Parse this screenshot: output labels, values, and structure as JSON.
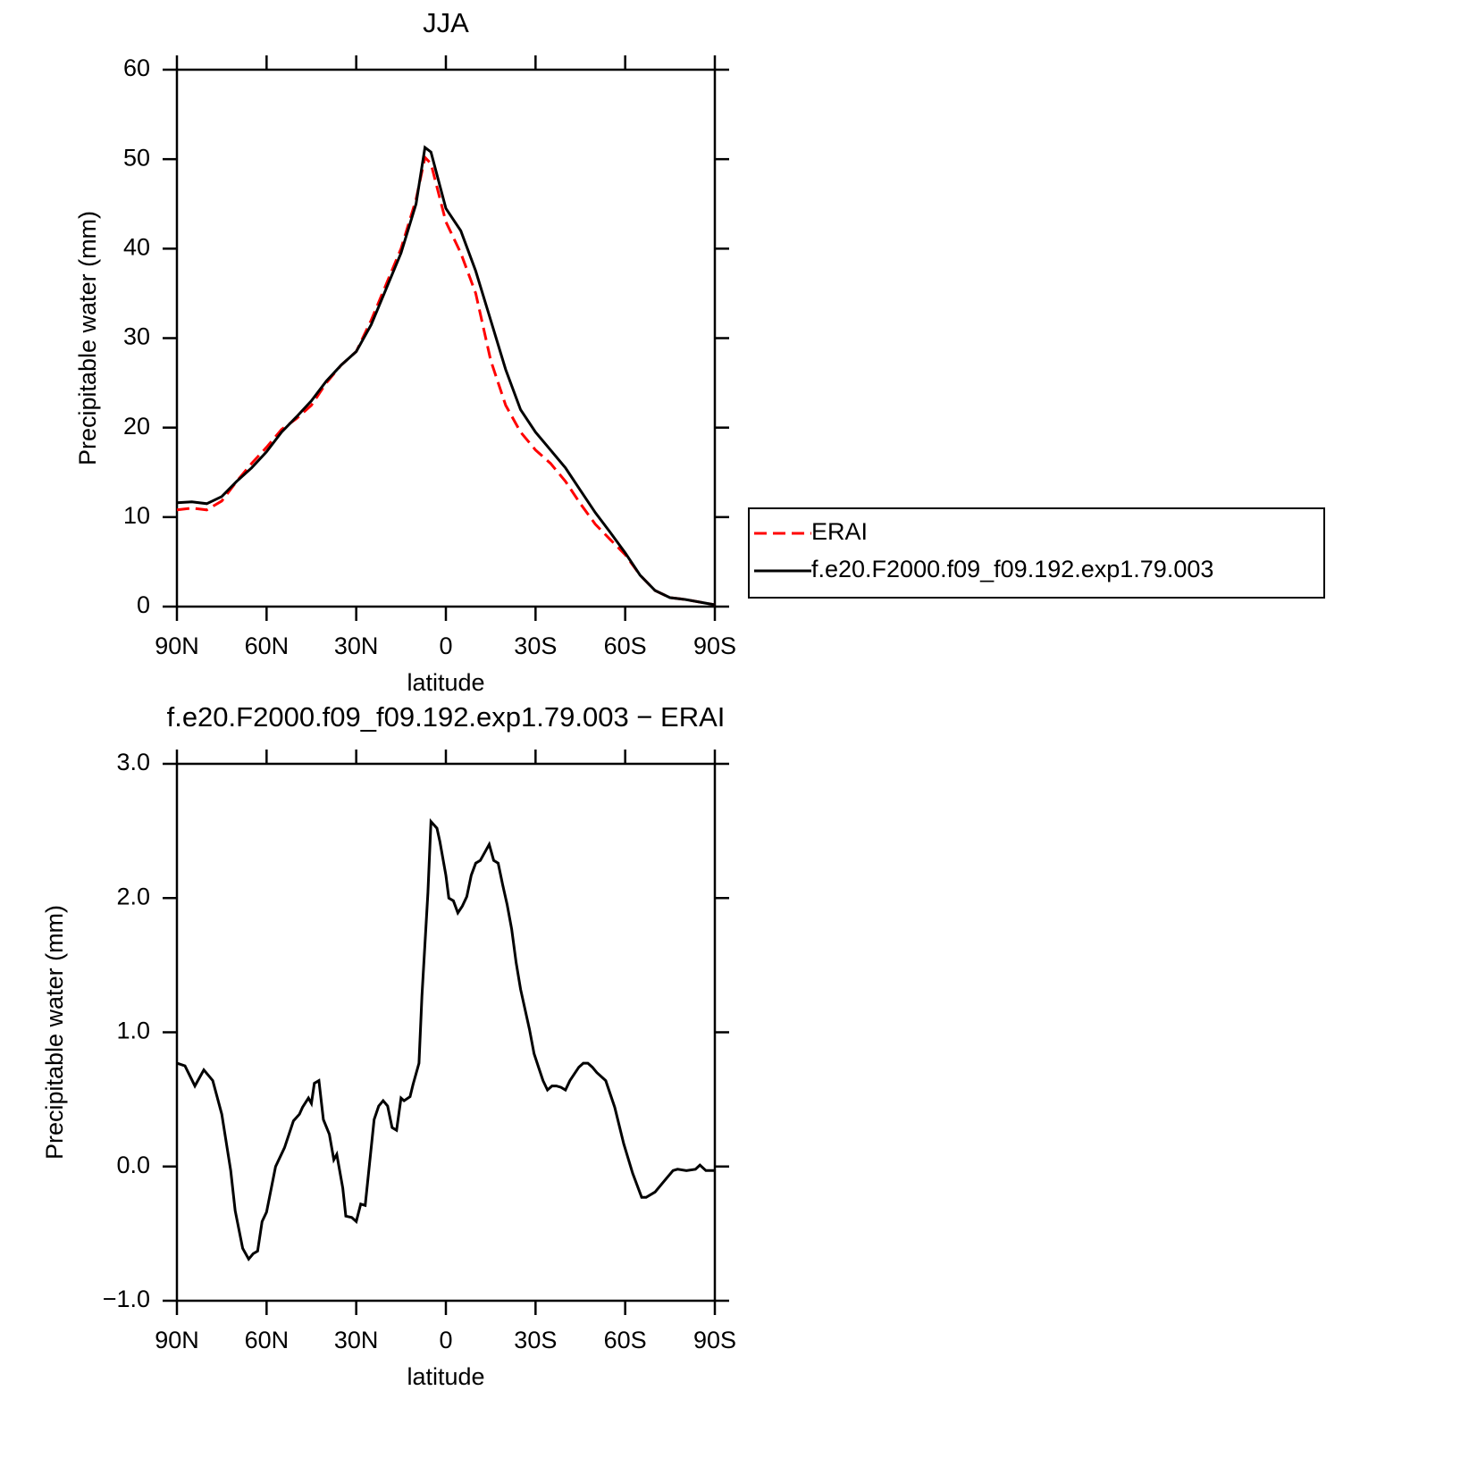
{
  "chart_data": [
    {
      "type": "line",
      "title": "JJA",
      "xlabel": "latitude",
      "ylabel": "Precipitable water (mm)",
      "x": [
        90,
        85,
        80,
        75,
        70,
        65,
        60,
        55,
        50,
        45,
        40,
        35,
        30,
        25,
        20,
        15,
        10,
        7,
        5,
        0,
        -5,
        -10,
        -15,
        -20,
        -25,
        -30,
        -35,
        -40,
        -45,
        -50,
        -55,
        -60,
        -65,
        -70,
        -75,
        -80,
        -85,
        -90
      ],
      "series": [
        {
          "name": "ERAI",
          "color": "#ff0000",
          "dash": true,
          "values": [
            10.8,
            11,
            10.8,
            11.8,
            14,
            16,
            17.8,
            19.8,
            21,
            22.5,
            25,
            27,
            28.5,
            32,
            36,
            40,
            45.5,
            50.2,
            49.5,
            43,
            39.5,
            35,
            27.5,
            22.5,
            19.5,
            17.5,
            16,
            14,
            11.5,
            9.2,
            7.5,
            5.8,
            3.5,
            1.8,
            1,
            0.8,
            0.5,
            0.2
          ]
        },
        {
          "name": "f.e20.F2000.f09_f09.192.exp1.79.003",
          "color": "#000000",
          "dash": false,
          "values": [
            11.6,
            11.7,
            11.5,
            12.3,
            14,
            15.5,
            17.3,
            19.5,
            21.2,
            23,
            25.2,
            27,
            28.5,
            31.5,
            35.5,
            39.5,
            45,
            51.3,
            50.8,
            44.5,
            42,
            37.5,
            32,
            26.5,
            22,
            19.5,
            17.5,
            15.5,
            13,
            10.5,
            8.3,
            6,
            3.5,
            1.8,
            1,
            0.8,
            0.5,
            0.2
          ]
        }
      ],
      "xlim": [
        90,
        -90
      ],
      "xticks": [
        {
          "value": 90,
          "label": "90N"
        },
        {
          "value": 60,
          "label": "60N"
        },
        {
          "value": 30,
          "label": "30N"
        },
        0,
        {
          "value": -30,
          "label": "30S"
        },
        {
          "value": -60,
          "label": "60S"
        },
        {
          "value": -90,
          "label": "90S"
        }
      ],
      "ylim": [
        0,
        60
      ],
      "yticks": [
        0,
        10,
        20,
        30,
        40,
        50,
        60
      ],
      "legend": "right"
    },
    {
      "type": "line",
      "title": "f.e20.F2000.f09_f09.192.exp1.79.003 − ERAI",
      "xlabel": "latitude",
      "ylabel": "Precipitable water (mm)",
      "x": [
        90,
        87.3,
        84,
        81,
        78,
        75,
        72,
        70.5,
        68,
        66,
        64.5,
        63,
        61.5,
        60,
        57,
        54,
        52.5,
        51,
        49,
        48,
        46,
        45,
        44,
        42.5,
        41,
        39,
        37.5,
        36.5,
        34.5,
        33.5,
        31.5,
        30,
        28.5,
        27,
        24,
        22.5,
        21,
        19.5,
        18,
        16.5,
        15,
        14,
        12,
        11,
        9,
        8,
        6,
        5,
        3,
        2,
        0,
        -1,
        -2.5,
        -4,
        -5.5,
        -7,
        -8.5,
        -10,
        -11.5,
        -13,
        -14.5,
        -16,
        -17.5,
        -19,
        -20.5,
        -22,
        -23.5,
        -25,
        -28,
        -29.5,
        -31,
        -32.5,
        -34,
        -35.5,
        -37,
        -38.5,
        -40,
        -41.5,
        -43,
        -44.5,
        -46,
        -47.5,
        -49,
        -50.5,
        -53.5,
        -56.5,
        -59.5,
        -62.5,
        -65.5,
        -67,
        -70,
        -73,
        -76,
        -77.5,
        -80.5,
        -83.5,
        -85,
        -87,
        -90
      ],
      "series": [
        {
          "name": "f.e20.F2000.f09_f09.192.exp1.79.003 − ERAI",
          "color": "#000000",
          "dash": false,
          "values": [
            0.77,
            0.75,
            0.6,
            0.72,
            0.64,
            0.39,
            -0.03,
            -0.33,
            -0.61,
            -0.69,
            -0.65,
            -0.63,
            -0.41,
            -0.34,
            0,
            0.14,
            0.24,
            0.34,
            0.39,
            0.44,
            0.51,
            0.47,
            0.62,
            0.64,
            0.35,
            0.24,
            0.05,
            0.09,
            -0.16,
            -0.37,
            -0.38,
            -0.41,
            -0.28,
            -0.29,
            0.35,
            0.45,
            0.49,
            0.45,
            0.29,
            0.27,
            0.51,
            0.49,
            0.52,
            0.61,
            0.77,
            1.27,
            2.04,
            2.57,
            2.52,
            2.42,
            2.17,
            2,
            1.98,
            1.89,
            1.94,
            2.01,
            2.17,
            2.26,
            2.28,
            2.34,
            2.4,
            2.28,
            2.26,
            2.1,
            1.95,
            1.77,
            1.52,
            1.32,
            1.02,
            0.84,
            0.74,
            0.64,
            0.57,
            0.6,
            0.6,
            0.59,
            0.57,
            0.64,
            0.69,
            0.74,
            0.77,
            0.77,
            0.74,
            0.7,
            0.64,
            0.44,
            0.17,
            -0.05,
            -0.23,
            -0.23,
            -0.19,
            -0.11,
            -0.03,
            -0.02,
            -0.03,
            -0.02,
            0.01,
            -0.03,
            -0.03
          ]
        }
      ],
      "xlim": [
        90,
        -90
      ],
      "xticks": [
        {
          "value": 90,
          "label": "90N"
        },
        {
          "value": 60,
          "label": "60N"
        },
        {
          "value": 30,
          "label": "30N"
        },
        0,
        {
          "value": -30,
          "label": "30S"
        },
        {
          "value": -60,
          "label": "60S"
        },
        {
          "value": -90,
          "label": "90S"
        }
      ],
      "ylim": [
        -1,
        3
      ],
      "yticks": [
        {
          "value": -1,
          "label": "−1.0"
        },
        {
          "value": 0,
          "label": "0.0"
        },
        {
          "value": 1,
          "label": "1.0"
        },
        {
          "value": 2,
          "label": "2.0"
        },
        {
          "value": 3,
          "label": "3.0"
        }
      ]
    }
  ]
}
